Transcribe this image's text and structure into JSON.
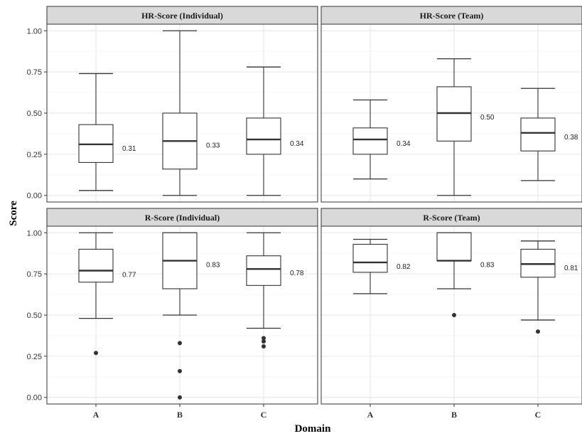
{
  "chart_data": {
    "type": "boxplot",
    "xlabel": "Domain",
    "ylabel": "Score",
    "ylim": [
      -0.04,
      1.04
    ],
    "yticks": [
      "0.00",
      "0.25",
      "0.50",
      "0.75",
      "1.00"
    ],
    "categories": [
      "A",
      "B",
      "C"
    ],
    "grid": true,
    "panels": [
      {
        "title": "HR-Score (Individual)",
        "boxes": [
          {
            "category": "A",
            "min": 0.03,
            "q1": 0.2,
            "median": 0.31,
            "q3": 0.43,
            "max": 0.74,
            "outliers": [],
            "median_label": "0.31"
          },
          {
            "category": "B",
            "min": 0.0,
            "q1": 0.16,
            "median": 0.33,
            "q3": 0.5,
            "max": 1.0,
            "outliers": [],
            "median_label": "0.33"
          },
          {
            "category": "C",
            "min": 0.0,
            "q1": 0.25,
            "median": 0.34,
            "q3": 0.47,
            "max": 0.78,
            "outliers": [],
            "median_label": "0.34"
          }
        ]
      },
      {
        "title": "HR-Score (Team)",
        "boxes": [
          {
            "category": "A",
            "min": 0.1,
            "q1": 0.25,
            "median": 0.34,
            "q3": 0.41,
            "max": 0.58,
            "outliers": [],
            "median_label": "0.34"
          },
          {
            "category": "B",
            "min": 0.0,
            "q1": 0.33,
            "median": 0.5,
            "q3": 0.66,
            "max": 0.83,
            "outliers": [],
            "median_label": "0.50"
          },
          {
            "category": "C",
            "min": 0.09,
            "q1": 0.27,
            "median": 0.38,
            "q3": 0.47,
            "max": 0.65,
            "outliers": [],
            "median_label": "0.38"
          }
        ]
      },
      {
        "title": "R-Score (Individual)",
        "boxes": [
          {
            "category": "A",
            "min": 0.48,
            "q1": 0.7,
            "median": 0.77,
            "q3": 0.9,
            "max": 1.0,
            "outliers": [
              0.27
            ],
            "median_label": "0.77"
          },
          {
            "category": "B",
            "min": 0.5,
            "q1": 0.66,
            "median": 0.83,
            "q3": 1.0,
            "max": 1.0,
            "outliers": [
              0.33,
              0.16,
              0.0
            ],
            "median_label": "0.83"
          },
          {
            "category": "C",
            "min": 0.42,
            "q1": 0.68,
            "median": 0.78,
            "q3": 0.86,
            "max": 1.0,
            "outliers": [
              0.36,
              0.34,
              0.31
            ],
            "median_label": "0.78"
          }
        ]
      },
      {
        "title": "R-Score (Team)",
        "boxes": [
          {
            "category": "A",
            "min": 0.63,
            "q1": 0.76,
            "median": 0.82,
            "q3": 0.93,
            "max": 0.96,
            "outliers": [],
            "median_label": "0.82"
          },
          {
            "category": "B",
            "min": 0.66,
            "q1": 0.83,
            "median": 0.83,
            "q3": 1.0,
            "max": 1.0,
            "outliers": [
              0.5
            ],
            "median_label": "0.83"
          },
          {
            "category": "C",
            "min": 0.47,
            "q1": 0.73,
            "median": 0.81,
            "q3": 0.9,
            "max": 0.95,
            "outliers": [
              0.4
            ],
            "median_label": "0.81"
          }
        ]
      }
    ]
  }
}
